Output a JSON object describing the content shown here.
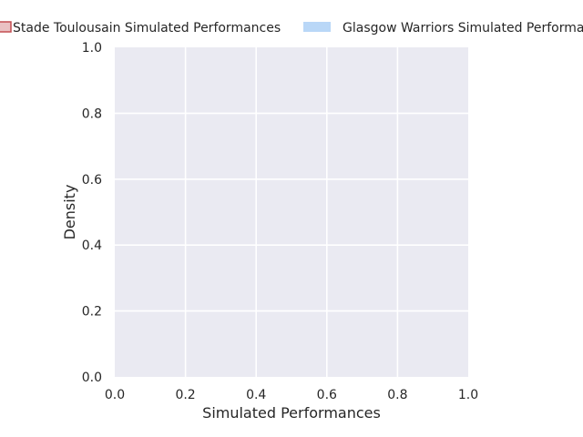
{
  "chart_data": {
    "type": "area",
    "title": "",
    "xlabel": "Simulated Performances",
    "ylabel": "Density",
    "xlim": [
      0.0,
      1.0
    ],
    "ylim": [
      0.0,
      1.0
    ],
    "xticks": [
      "0.0",
      "0.2",
      "0.4",
      "0.6",
      "0.8",
      "1.0"
    ],
    "yticks": [
      "0.0",
      "0.2",
      "0.4",
      "0.6",
      "0.8",
      "1.0"
    ],
    "grid": true,
    "legend_position": "top",
    "series": [
      {
        "name": "Stade Toulousain Simulated Performances",
        "color": "#c44e52",
        "values": []
      },
      {
        "name": "Glasgow Warriors Simulated Performances",
        "color": "#a1c9f4",
        "values": []
      }
    ],
    "colors": {
      "plot_background": "#eaeaf2",
      "grid": "#ffffff"
    }
  }
}
